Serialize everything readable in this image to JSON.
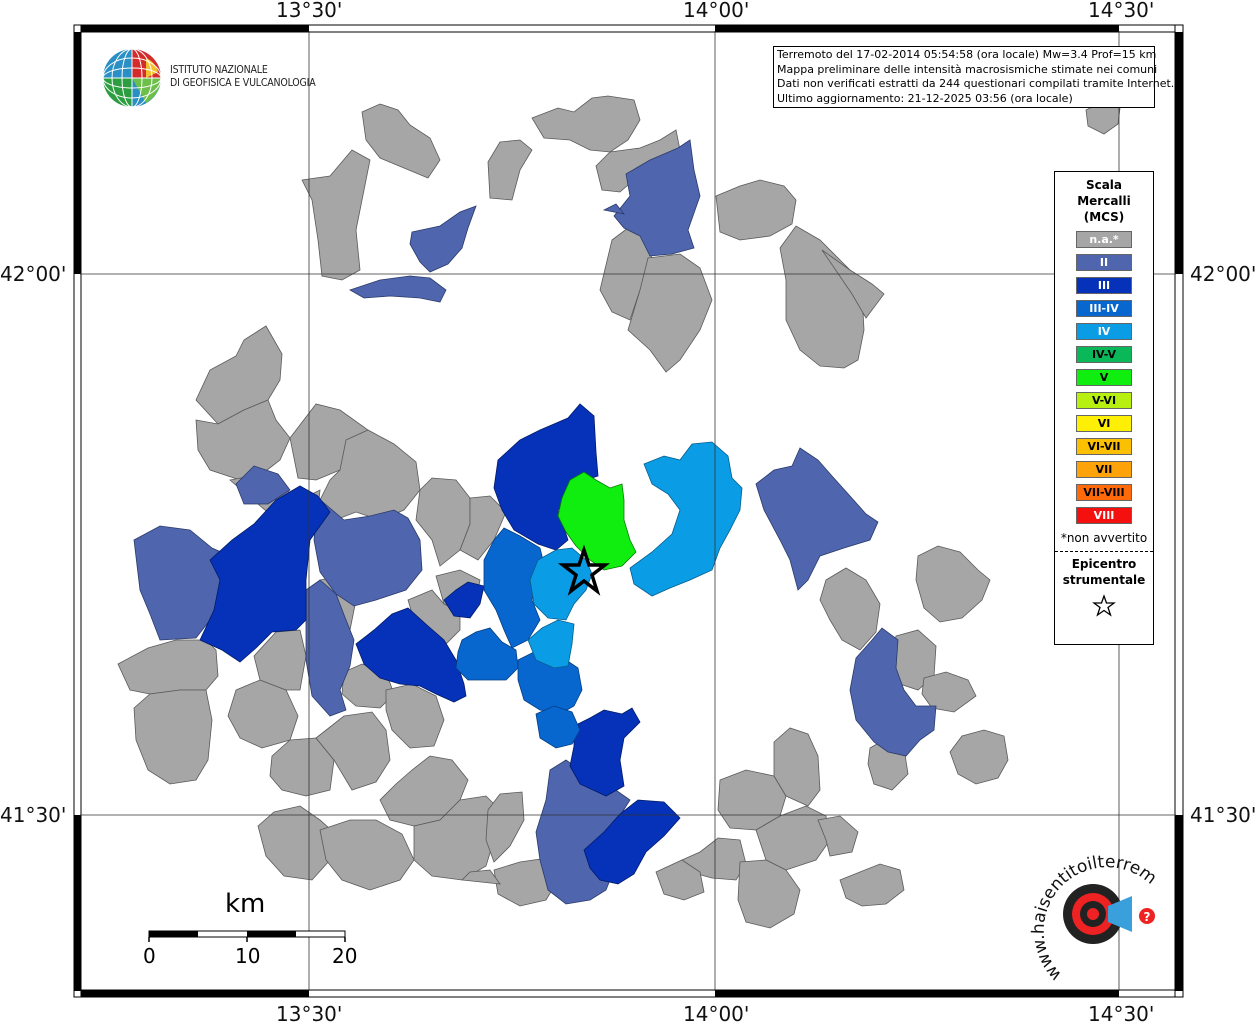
{
  "map": {
    "coords": {
      "top": [
        "13°30'",
        "14°00'",
        "14°30'"
      ],
      "bottom": [
        "13°30'",
        "14°00'",
        "14°30'"
      ],
      "left": [
        "42°00'",
        "41°30'"
      ],
      "right": [
        "42°00'",
        "41°30'"
      ]
    },
    "info_lines": [
      "Terremoto del 17-02-2014 05:54:58 (ora locale) Mw=3.4 Prof=15 km",
      "Mappa preliminare delle intensità macrosismiche stimate nei comuni",
      "Dati non verificati estratti da 244 questionari compilati tramite Internet.",
      "Ultimo aggiornamento: 21-12-2025 03:56 (ora locale)"
    ],
    "logo_lines": [
      "ISTITUTO NAZIONALE",
      "DI GEOFISICA E VULCANOLOGIA"
    ],
    "legend": {
      "title_lines": [
        "Scala",
        "Mercalli",
        "(MCS)"
      ],
      "items": [
        {
          "label": "n.a.*",
          "color": "#a6a6a6"
        },
        {
          "label": "II",
          "color": "#4f65ad"
        },
        {
          "label": "III",
          "color": "#0532b8"
        },
        {
          "label": "III-IV",
          "color": "#0866cf"
        },
        {
          "label": "IV",
          "color": "#0b9ce6"
        },
        {
          "label": "IV-V",
          "color": "#0ab85a"
        },
        {
          "label": "V",
          "color": "#10ee10"
        },
        {
          "label": "V-VI",
          "color": "#b7ef11"
        },
        {
          "label": "VI",
          "color": "#fdf005"
        },
        {
          "label": "VI-VII",
          "color": "#fcc003"
        },
        {
          "label": "VII",
          "color": "#fea20a"
        },
        {
          "label": "VII-VIII",
          "color": "#fe6a0a"
        },
        {
          "label": "VIII",
          "color": "#f51010"
        }
      ],
      "note": "*non avvertito",
      "epicenter_lines": [
        "Epicentro",
        "strumentale"
      ]
    },
    "scale": {
      "unit": "km",
      "ticks": [
        "0",
        "10",
        "20"
      ]
    },
    "watermark": "www.haisentitoilterremoto.it"
  }
}
